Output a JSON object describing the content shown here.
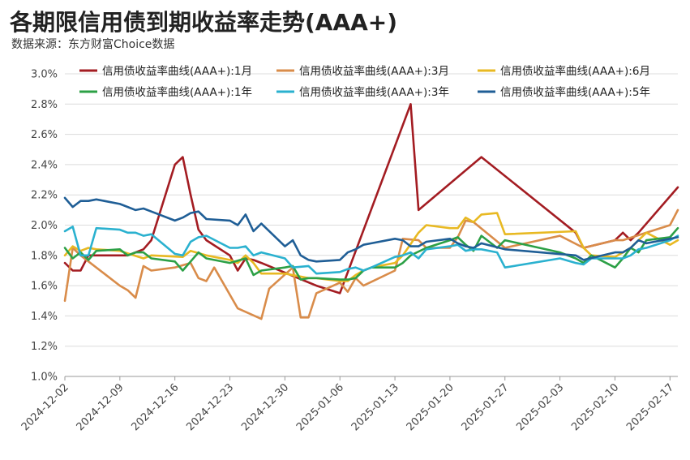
{
  "title": "各期限信用债到期收益率走势(AAA+)",
  "subtitle": "数据来源：东方财富Choice数据",
  "chart_data": {
    "type": "line",
    "x_ticks": [
      "2024-12-02",
      "2024-12-09",
      "2024-12-16",
      "2024-12-23",
      "2024-12-30",
      "2025-01-06",
      "2025-01-13",
      "2025-01-20",
      "2025-01-27",
      "2025-02-03",
      "2025-02-10",
      "2025-02-17"
    ],
    "y_ticks": [
      "1.0%",
      "1.2%",
      "1.4%",
      "1.6%",
      "1.8%",
      "2.0%",
      "2.2%",
      "2.4%",
      "2.6%",
      "2.8%",
      "3.0%"
    ],
    "ylim": [
      1.0,
      3.0
    ],
    "xlim": [
      "2024-12-02",
      "2025-02-18"
    ],
    "grid": "horizontal",
    "legend_position": "top",
    "series": [
      {
        "name": "信用债收益率曲线(AAA+):1月",
        "color": "#a31c22",
        "points": [
          [
            "2024-12-02",
            1.75
          ],
          [
            "2024-12-03",
            1.7
          ],
          [
            "2024-12-04",
            1.7
          ],
          [
            "2024-12-05",
            1.8
          ],
          [
            "2024-12-06",
            1.8
          ],
          [
            "2024-12-09",
            1.8
          ],
          [
            "2024-12-10",
            1.8
          ],
          [
            "2024-12-11",
            1.82
          ],
          [
            "2024-12-12",
            1.84
          ],
          [
            "2024-12-13",
            1.9
          ],
          [
            "2024-12-16",
            2.4
          ],
          [
            "2024-12-17",
            2.45
          ],
          [
            "2024-12-18",
            2.2
          ],
          [
            "2024-12-19",
            1.97
          ],
          [
            "2024-12-20",
            1.9
          ],
          [
            "2024-12-23",
            1.8
          ],
          [
            "2024-12-24",
            1.7
          ],
          [
            "2024-12-25",
            1.78
          ],
          [
            "2024-12-26",
            1.77
          ],
          [
            "2024-12-27",
            1.75
          ],
          [
            "2025-01-03",
            1.6
          ],
          [
            "2025-01-06",
            1.55
          ],
          [
            "2025-01-15",
            2.8
          ],
          [
            "2025-01-16",
            2.1
          ],
          [
            "2025-01-24",
            2.45
          ],
          [
            "2025-02-05",
            1.95
          ],
          [
            "2025-02-06",
            1.85
          ],
          [
            "2025-02-10",
            1.9
          ],
          [
            "2025-02-11",
            1.95
          ],
          [
            "2025-02-12",
            1.9
          ],
          [
            "2025-02-13",
            1.95
          ],
          [
            "2025-02-18",
            2.25
          ]
        ]
      },
      {
        "name": "信用债收益率曲线(AAA+):3月",
        "color": "#d98c4a",
        "points": [
          [
            "2024-12-02",
            1.5
          ],
          [
            "2024-12-03",
            1.85
          ],
          [
            "2024-12-04",
            1.8
          ],
          [
            "2024-12-09",
            1.6
          ],
          [
            "2024-12-10",
            1.57
          ],
          [
            "2024-12-11",
            1.52
          ],
          [
            "2024-12-12",
            1.73
          ],
          [
            "2024-12-13",
            1.7
          ],
          [
            "2024-12-16",
            1.72
          ],
          [
            "2024-12-18",
            1.75
          ],
          [
            "2024-12-19",
            1.65
          ],
          [
            "2024-12-20",
            1.63
          ],
          [
            "2024-12-21",
            1.72
          ],
          [
            "2024-12-24",
            1.45
          ],
          [
            "2024-12-27",
            1.38
          ],
          [
            "2024-12-28",
            1.58
          ],
          [
            "2024-12-31",
            1.72
          ],
          [
            "2025-01-01",
            1.39
          ],
          [
            "2025-01-02",
            1.39
          ],
          [
            "2025-01-03",
            1.55
          ],
          [
            "2025-01-06",
            1.62
          ],
          [
            "2025-01-07",
            1.56
          ],
          [
            "2025-01-08",
            1.65
          ],
          [
            "2025-01-09",
            1.6
          ],
          [
            "2025-01-13",
            1.7
          ],
          [
            "2025-01-14",
            1.91
          ],
          [
            "2025-01-16",
            1.9
          ],
          [
            "2025-01-17",
            1.85
          ],
          [
            "2025-01-20",
            1.85
          ],
          [
            "2025-01-21",
            1.92
          ],
          [
            "2025-01-22",
            2.03
          ],
          [
            "2025-01-23",
            2.02
          ],
          [
            "2025-01-27",
            1.85
          ],
          [
            "2025-02-03",
            1.93
          ],
          [
            "2025-02-06",
            1.85
          ],
          [
            "2025-02-10",
            1.9
          ],
          [
            "2025-02-11",
            1.9
          ],
          [
            "2025-02-14",
            1.95
          ],
          [
            "2025-02-17",
            2.0
          ],
          [
            "2025-02-18",
            2.1
          ]
        ]
      },
      {
        "name": "信用债收益率曲线(AAA+):6月",
        "color": "#e8b922",
        "points": [
          [
            "2024-12-02",
            1.8
          ],
          [
            "2024-12-03",
            1.86
          ],
          [
            "2024-12-04",
            1.83
          ],
          [
            "2024-12-05",
            1.85
          ],
          [
            "2024-12-06",
            1.84
          ],
          [
            "2024-12-09",
            1.83
          ],
          [
            "2024-12-12",
            1.78
          ],
          [
            "2024-12-13",
            1.8
          ],
          [
            "2024-12-17",
            1.79
          ],
          [
            "2024-12-18",
            1.83
          ],
          [
            "2024-12-20",
            1.8
          ],
          [
            "2024-12-23",
            1.77
          ],
          [
            "2024-12-24",
            1.75
          ],
          [
            "2024-12-25",
            1.8
          ],
          [
            "2024-12-26",
            1.75
          ],
          [
            "2024-12-27",
            1.68
          ],
          [
            "2024-12-30",
            1.68
          ],
          [
            "2025-01-02",
            1.65
          ],
          [
            "2025-01-03",
            1.65
          ],
          [
            "2025-01-06",
            1.63
          ],
          [
            "2025-01-07",
            1.63
          ],
          [
            "2025-01-08",
            1.67
          ],
          [
            "2025-01-09",
            1.7
          ],
          [
            "2025-01-10",
            1.72
          ],
          [
            "2025-01-13",
            1.75
          ],
          [
            "2025-01-14",
            1.8
          ],
          [
            "2025-01-16",
            1.95
          ],
          [
            "2025-01-17",
            2.0
          ],
          [
            "2025-01-20",
            1.98
          ],
          [
            "2025-01-21",
            1.98
          ],
          [
            "2025-01-22",
            2.05
          ],
          [
            "2025-01-23",
            2.02
          ],
          [
            "2025-01-24",
            2.07
          ],
          [
            "2025-01-26",
            2.08
          ],
          [
            "2025-01-27",
            1.94
          ],
          [
            "2025-02-05",
            1.96
          ],
          [
            "2025-02-06",
            1.85
          ],
          [
            "2025-02-07",
            1.8
          ],
          [
            "2025-02-10",
            1.79
          ],
          [
            "2025-02-11",
            1.82
          ],
          [
            "2025-02-12",
            1.85
          ],
          [
            "2025-02-14",
            1.95
          ],
          [
            "2025-02-17",
            1.87
          ],
          [
            "2025-02-18",
            1.9
          ]
        ]
      },
      {
        "name": "信用债收益率曲线(AAA+):1年",
        "color": "#2ca046",
        "points": [
          [
            "2024-12-02",
            1.85
          ],
          [
            "2024-12-03",
            1.78
          ],
          [
            "2024-12-04",
            1.82
          ],
          [
            "2024-12-05",
            1.77
          ],
          [
            "2024-12-06",
            1.83
          ],
          [
            "2024-12-09",
            1.84
          ],
          [
            "2024-12-10",
            1.8
          ],
          [
            "2024-12-11",
            1.82
          ],
          [
            "2024-12-12",
            1.82
          ],
          [
            "2024-12-13",
            1.78
          ],
          [
            "2024-12-16",
            1.76
          ],
          [
            "2024-12-17",
            1.7
          ],
          [
            "2024-12-18",
            1.76
          ],
          [
            "2024-12-19",
            1.82
          ],
          [
            "2024-12-20",
            1.78
          ],
          [
            "2024-12-23",
            1.75
          ],
          [
            "2024-12-25",
            1.78
          ],
          [
            "2024-12-26",
            1.67
          ],
          [
            "2024-12-27",
            1.7
          ],
          [
            "2024-12-30",
            1.72
          ],
          [
            "2024-12-31",
            1.73
          ],
          [
            "2025-01-01",
            1.64
          ],
          [
            "2025-01-02",
            1.65
          ],
          [
            "2025-01-03",
            1.65
          ],
          [
            "2025-01-06",
            1.64
          ],
          [
            "2025-01-07",
            1.64
          ],
          [
            "2025-01-08",
            1.65
          ],
          [
            "2025-01-09",
            1.7
          ],
          [
            "2025-01-10",
            1.72
          ],
          [
            "2025-01-13",
            1.72
          ],
          [
            "2025-01-14",
            1.75
          ],
          [
            "2025-01-15",
            1.8
          ],
          [
            "2025-01-17",
            1.85
          ],
          [
            "2025-01-20",
            1.9
          ],
          [
            "2025-01-21",
            1.92
          ],
          [
            "2025-01-22",
            1.87
          ],
          [
            "2025-01-23",
            1.83
          ],
          [
            "2025-01-24",
            1.93
          ],
          [
            "2025-01-26",
            1.85
          ],
          [
            "2025-01-27",
            1.9
          ],
          [
            "2025-02-03",
            1.82
          ],
          [
            "2025-02-05",
            1.78
          ],
          [
            "2025-02-06",
            1.75
          ],
          [
            "2025-02-07",
            1.8
          ],
          [
            "2025-02-10",
            1.72
          ],
          [
            "2025-02-11",
            1.78
          ],
          [
            "2025-02-12",
            1.85
          ],
          [
            "2025-02-13",
            1.82
          ],
          [
            "2025-02-14",
            1.9
          ],
          [
            "2025-02-17",
            1.92
          ],
          [
            "2025-02-18",
            1.98
          ]
        ]
      },
      {
        "name": "信用债收益率曲线(AAA+):3年",
        "color": "#2ab1cf",
        "points": [
          [
            "2024-12-02",
            1.96
          ],
          [
            "2024-12-03",
            1.99
          ],
          [
            "2024-12-04",
            1.8
          ],
          [
            "2024-12-05",
            1.8
          ],
          [
            "2024-12-06",
            1.98
          ],
          [
            "2024-12-09",
            1.97
          ],
          [
            "2024-12-10",
            1.95
          ],
          [
            "2024-12-11",
            1.95
          ],
          [
            "2024-12-12",
            1.93
          ],
          [
            "2024-12-13",
            1.94
          ],
          [
            "2024-12-16",
            1.81
          ],
          [
            "2024-12-17",
            1.8
          ],
          [
            "2024-12-18",
            1.89
          ],
          [
            "2024-12-19",
            1.92
          ],
          [
            "2024-12-20",
            1.93
          ],
          [
            "2024-12-23",
            1.85
          ],
          [
            "2024-12-24",
            1.85
          ],
          [
            "2024-12-25",
            1.86
          ],
          [
            "2024-12-26",
            1.8
          ],
          [
            "2024-12-27",
            1.82
          ],
          [
            "2024-12-30",
            1.78
          ],
          [
            "2024-12-31",
            1.72
          ],
          [
            "2025-01-02",
            1.73
          ],
          [
            "2025-01-03",
            1.68
          ],
          [
            "2025-01-06",
            1.69
          ],
          [
            "2025-01-07",
            1.71
          ],
          [
            "2025-01-08",
            1.72
          ],
          [
            "2025-01-09",
            1.7
          ],
          [
            "2025-01-10",
            1.72
          ],
          [
            "2025-01-13",
            1.79
          ],
          [
            "2025-01-14",
            1.8
          ],
          [
            "2025-01-15",
            1.82
          ],
          [
            "2025-01-16",
            1.78
          ],
          [
            "2025-01-17",
            1.84
          ],
          [
            "2025-01-20",
            1.86
          ],
          [
            "2025-01-21",
            1.87
          ],
          [
            "2025-01-22",
            1.83
          ],
          [
            "2025-01-23",
            1.84
          ],
          [
            "2025-01-24",
            1.84
          ],
          [
            "2025-01-26",
            1.82
          ],
          [
            "2025-01-27",
            1.72
          ],
          [
            "2025-02-03",
            1.78
          ],
          [
            "2025-02-05",
            1.75
          ],
          [
            "2025-02-06",
            1.74
          ],
          [
            "2025-02-07",
            1.78
          ],
          [
            "2025-02-10",
            1.78
          ],
          [
            "2025-02-11",
            1.78
          ],
          [
            "2025-02-12",
            1.8
          ],
          [
            "2025-02-13",
            1.84
          ],
          [
            "2025-02-14",
            1.85
          ],
          [
            "2025-02-17",
            1.9
          ],
          [
            "2025-02-18",
            1.93
          ]
        ]
      },
      {
        "name": "信用债收益率曲线(AAA+):5年",
        "color": "#1f5e96",
        "points": [
          [
            "2024-12-02",
            2.18
          ],
          [
            "2024-12-03",
            2.12
          ],
          [
            "2024-12-04",
            2.16
          ],
          [
            "2024-12-05",
            2.16
          ],
          [
            "2024-12-06",
            2.17
          ],
          [
            "2024-12-09",
            2.14
          ],
          [
            "2024-12-10",
            2.12
          ],
          [
            "2024-12-11",
            2.1
          ],
          [
            "2024-12-12",
            2.11
          ],
          [
            "2024-12-13",
            2.09
          ],
          [
            "2024-12-16",
            2.03
          ],
          [
            "2024-12-17",
            2.05
          ],
          [
            "2024-12-18",
            2.08
          ],
          [
            "2024-12-19",
            2.09
          ],
          [
            "2024-12-20",
            2.04
          ],
          [
            "2024-12-23",
            2.03
          ],
          [
            "2024-12-24",
            2.0
          ],
          [
            "2024-12-25",
            2.07
          ],
          [
            "2024-12-26",
            1.96
          ],
          [
            "2024-12-27",
            2.01
          ],
          [
            "2024-12-30",
            1.86
          ],
          [
            "2024-12-31",
            1.9
          ],
          [
            "2025-01-01",
            1.8
          ],
          [
            "2025-01-02",
            1.77
          ],
          [
            "2025-01-03",
            1.76
          ],
          [
            "2025-01-06",
            1.77
          ],
          [
            "2025-01-07",
            1.82
          ],
          [
            "2025-01-08",
            1.84
          ],
          [
            "2025-01-09",
            1.87
          ],
          [
            "2025-01-10",
            1.88
          ],
          [
            "2025-01-13",
            1.91
          ],
          [
            "2025-01-14",
            1.9
          ],
          [
            "2025-01-15",
            1.86
          ],
          [
            "2025-01-16",
            1.86
          ],
          [
            "2025-01-17",
            1.89
          ],
          [
            "2025-01-20",
            1.91
          ],
          [
            "2025-01-21",
            1.88
          ],
          [
            "2025-01-22",
            1.86
          ],
          [
            "2025-01-23",
            1.85
          ],
          [
            "2025-01-24",
            1.88
          ],
          [
            "2025-01-27",
            1.84
          ],
          [
            "2025-02-05",
            1.8
          ],
          [
            "2025-02-06",
            1.77
          ],
          [
            "2025-02-10",
            1.82
          ],
          [
            "2025-02-11",
            1.82
          ],
          [
            "2025-02-12",
            1.85
          ],
          [
            "2025-02-13",
            1.9
          ],
          [
            "2025-02-14",
            1.88
          ],
          [
            "2025-02-17",
            1.91
          ],
          [
            "2025-02-18",
            1.92
          ]
        ]
      }
    ]
  }
}
